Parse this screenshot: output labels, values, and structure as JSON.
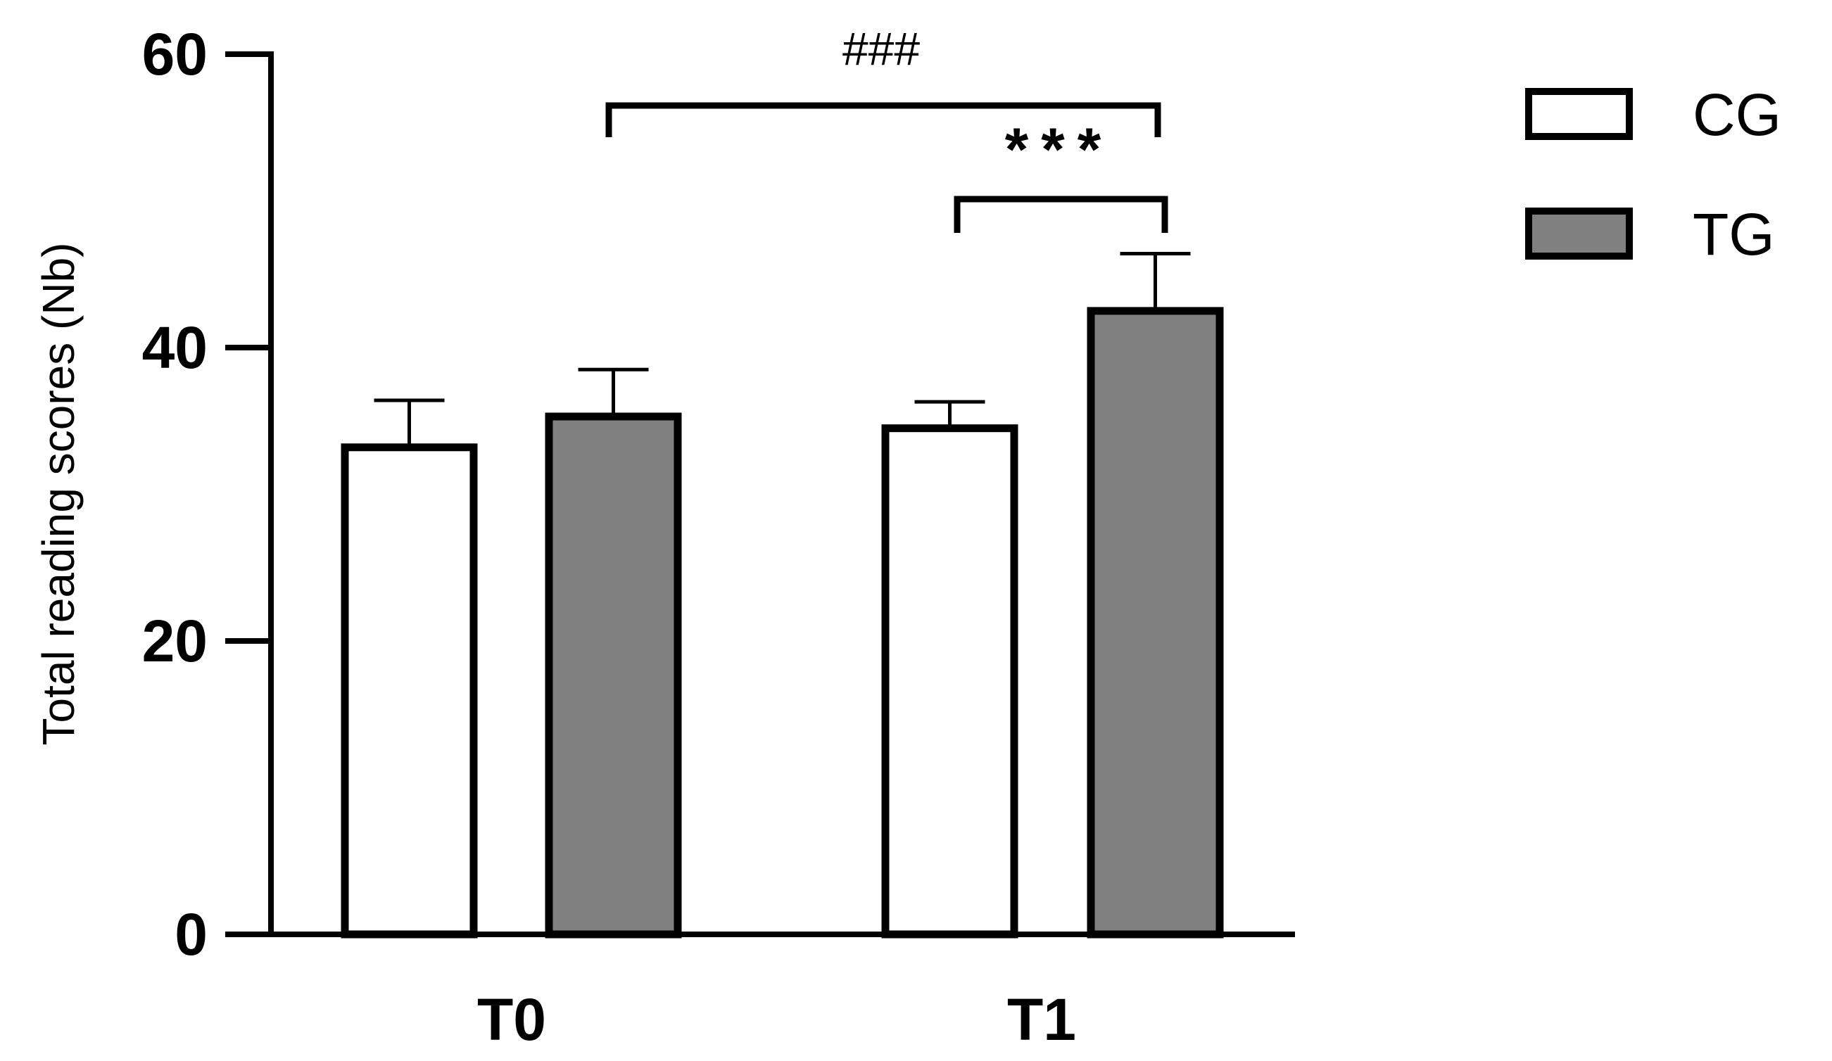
{
  "chart_data": {
    "type": "bar",
    "categories": [
      "T0",
      "T1"
    ],
    "series": [
      {
        "name": "CG",
        "values": [
          33.2,
          34.5
        ],
        "errors": [
          3.2,
          1.8
        ],
        "color": "#ffffff"
      },
      {
        "name": "TG",
        "values": [
          35.3,
          42.5
        ],
        "errors": [
          3.2,
          3.9
        ],
        "color": "#808080"
      }
    ],
    "title": "",
    "xlabel": "",
    "ylabel": "Total reading scores (Nb)",
    "ylim": [
      0,
      60
    ],
    "yticks": [
      "0",
      "20",
      "40",
      "60"
    ],
    "grid": false,
    "legend_position": "top-right",
    "annotations": [
      {
        "text": "###",
        "from": "T0 TG",
        "to": "T1 TG"
      },
      {
        "text": "***",
        "from": "T1 CG",
        "to": "T1 TG"
      }
    ]
  }
}
